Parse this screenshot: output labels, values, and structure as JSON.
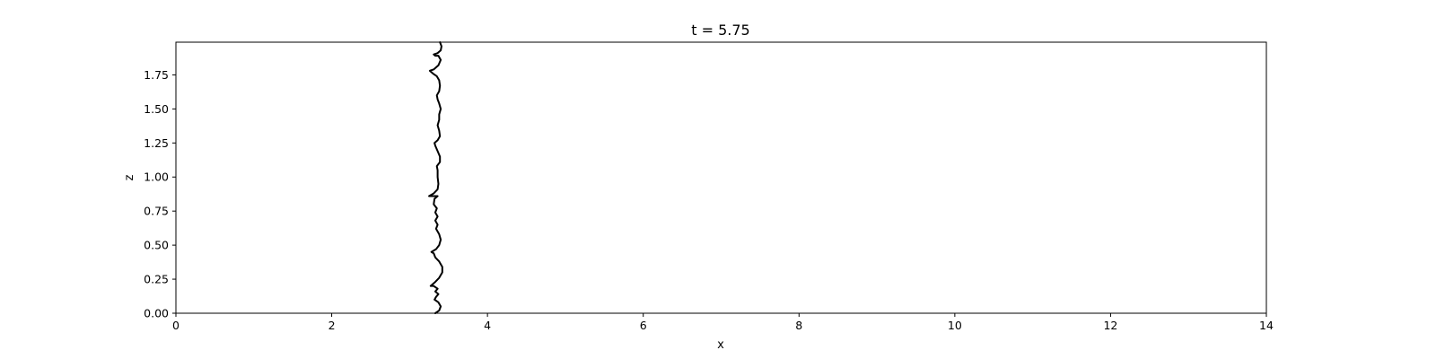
{
  "chart_data": {
    "type": "line",
    "title": "t = 5.75",
    "xlabel": "x",
    "ylabel": "z",
    "xlim": [
      0,
      14
    ],
    "ylim": [
      0,
      1.99
    ],
    "x_ticks": [
      "0",
      "2",
      "4",
      "6",
      "8",
      "10",
      "12",
      "14"
    ],
    "y_ticks": [
      "0.00",
      "0.25",
      "0.50",
      "0.75",
      "1.00",
      "1.25",
      "1.50",
      "1.75"
    ],
    "grid": false,
    "legend": "none",
    "series": [
      {
        "color": "#000000",
        "points": [
          [
            3.33,
            0.0
          ],
          [
            3.38,
            0.02
          ],
          [
            3.4,
            0.05
          ],
          [
            3.37,
            0.08
          ],
          [
            3.32,
            0.1
          ],
          [
            3.34,
            0.12
          ],
          [
            3.37,
            0.14
          ],
          [
            3.33,
            0.16
          ],
          [
            3.36,
            0.18
          ],
          [
            3.31,
            0.2
          ],
          [
            3.27,
            0.2
          ],
          [
            3.33,
            0.23
          ],
          [
            3.38,
            0.26
          ],
          [
            3.42,
            0.3
          ],
          [
            3.42,
            0.34
          ],
          [
            3.38,
            0.38
          ],
          [
            3.33,
            0.41
          ],
          [
            3.31,
            0.44
          ],
          [
            3.28,
            0.45
          ],
          [
            3.34,
            0.47
          ],
          [
            3.38,
            0.5
          ],
          [
            3.4,
            0.54
          ],
          [
            3.38,
            0.58
          ],
          [
            3.34,
            0.62
          ],
          [
            3.36,
            0.65
          ],
          [
            3.33,
            0.68
          ],
          [
            3.36,
            0.71
          ],
          [
            3.33,
            0.74
          ],
          [
            3.35,
            0.77
          ],
          [
            3.31,
            0.8
          ],
          [
            3.32,
            0.84
          ],
          [
            3.36,
            0.86
          ],
          [
            3.3,
            0.86
          ],
          [
            3.25,
            0.86
          ],
          [
            3.31,
            0.88
          ],
          [
            3.36,
            0.91
          ],
          [
            3.37,
            0.95
          ],
          [
            3.36,
            1.0
          ],
          [
            3.36,
            1.05
          ],
          [
            3.35,
            1.08
          ],
          [
            3.39,
            1.11
          ],
          [
            3.39,
            1.15
          ],
          [
            3.36,
            1.19
          ],
          [
            3.33,
            1.23
          ],
          [
            3.32,
            1.25
          ],
          [
            3.36,
            1.27
          ],
          [
            3.39,
            1.3
          ],
          [
            3.38,
            1.34
          ],
          [
            3.36,
            1.38
          ],
          [
            3.38,
            1.42
          ],
          [
            3.38,
            1.46
          ],
          [
            3.4,
            1.5
          ],
          [
            3.38,
            1.54
          ],
          [
            3.36,
            1.57
          ],
          [
            3.35,
            1.6
          ],
          [
            3.38,
            1.63
          ],
          [
            3.39,
            1.67
          ],
          [
            3.38,
            1.71
          ],
          [
            3.35,
            1.74
          ],
          [
            3.3,
            1.76
          ],
          [
            3.26,
            1.78
          ],
          [
            3.31,
            1.79
          ],
          [
            3.37,
            1.82
          ],
          [
            3.4,
            1.86
          ],
          [
            3.37,
            1.89
          ],
          [
            3.33,
            1.89
          ],
          [
            3.31,
            1.9
          ],
          [
            3.36,
            1.91
          ],
          [
            3.4,
            1.93
          ],
          [
            3.41,
            1.96
          ],
          [
            3.39,
            1.99
          ]
        ]
      }
    ]
  }
}
